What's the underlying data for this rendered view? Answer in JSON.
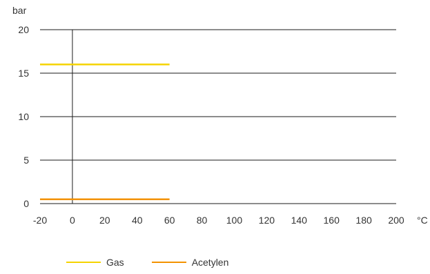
{
  "chart_data": {
    "type": "line",
    "xlabel": "°C",
    "ylabel": "bar",
    "xlim": [
      -20,
      200
    ],
    "ylim": [
      0,
      20
    ],
    "xticks": [
      -20,
      0,
      20,
      40,
      60,
      80,
      100,
      120,
      140,
      160,
      180,
      200
    ],
    "yticks": [
      0,
      5,
      10,
      15,
      20
    ],
    "grid": "horizontal",
    "legend_position": "bottom-left",
    "series": [
      {
        "name": "Gas",
        "color": "#f5d300",
        "x": [
          -20,
          60
        ],
        "y": [
          16,
          16
        ]
      },
      {
        "name": "Acetylen",
        "color": "#f39200",
        "x": [
          -20,
          60
        ],
        "y": [
          0.5,
          0.5
        ]
      }
    ]
  }
}
